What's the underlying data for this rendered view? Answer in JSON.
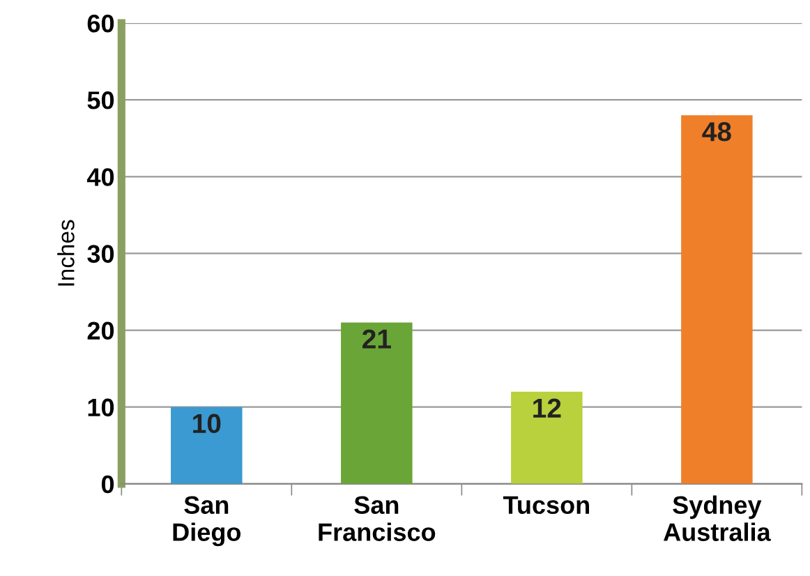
{
  "chart_data": {
    "type": "bar",
    "ylabel": "Inches",
    "categories": [
      "San\nDiego",
      "San\nFrancisco",
      "Tucson",
      "Sydney\nAustralia"
    ],
    "values": [
      10,
      21,
      12,
      48
    ],
    "colors": [
      "#3a9ad1",
      "#6aa537",
      "#b8d13c",
      "#f07f2a"
    ],
    "ylim": [
      0,
      60
    ],
    "yticks": [
      0,
      10,
      20,
      30,
      40,
      50,
      60
    ],
    "grid": "y",
    "data_labels": true,
    "legend": false
  }
}
